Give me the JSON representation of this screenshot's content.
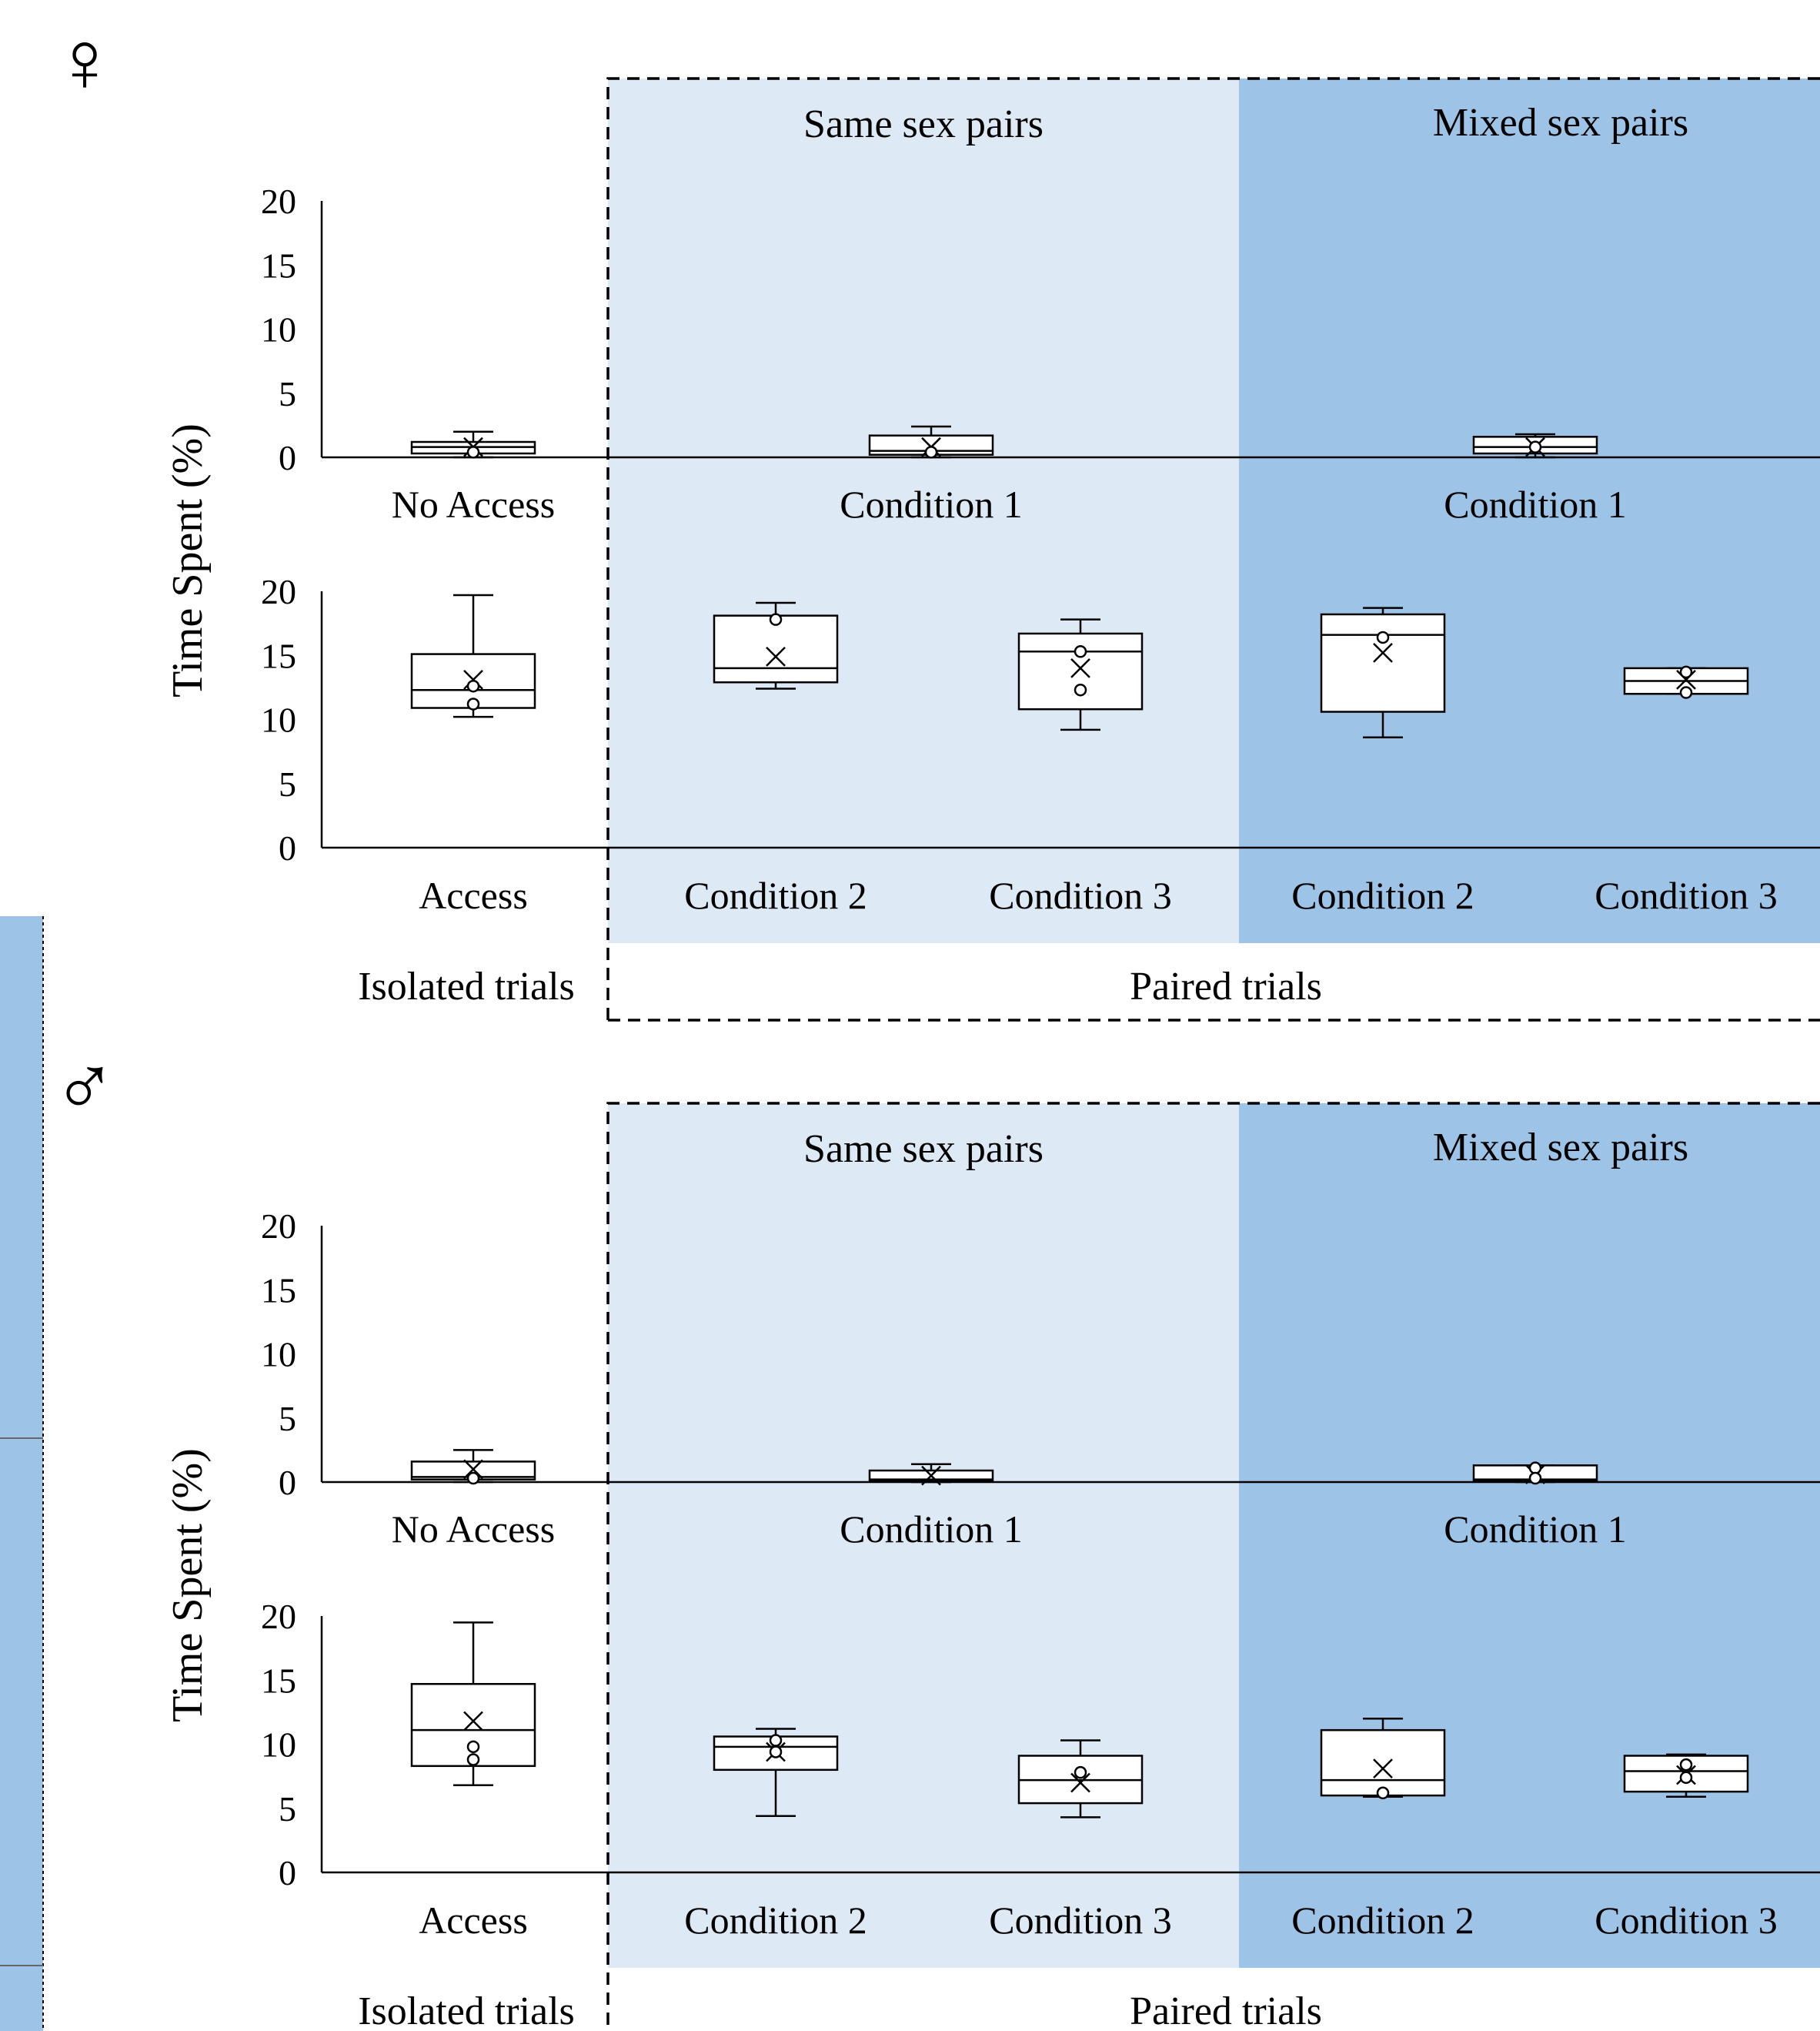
{
  "figure": {
    "ylabel": "Time Spent (%)",
    "group_same": "Same sex pairs",
    "group_mixed": "Mixed sex pairs",
    "bottom_left": "Isolated trials",
    "bottom_right": "Paired trials",
    "colors": {
      "same_bg": "#dde9f5",
      "mixed_bg": "#9dc3e6",
      "box": "#ffffff",
      "ink": "#000000"
    }
  },
  "chart_data": [
    {
      "type": "box",
      "panel": "female",
      "sex_symbol": "♀",
      "top": {
        "ylim": [
          0,
          20
        ],
        "yticks": [
          "0",
          "5",
          "10",
          "15",
          "20"
        ],
        "categories": [
          "No Access",
          "Condition 1",
          "Condition 1"
        ],
        "boxes": [
          {
            "min": 0,
            "q1": 0.3,
            "median": 0.8,
            "q3": 1.2,
            "max": 2.0,
            "mean": 0.8,
            "outliers": [
              0.4
            ]
          },
          {
            "min": 0,
            "q1": 0.2,
            "median": 0.5,
            "q3": 1.7,
            "max": 2.4,
            "mean": 0.8,
            "outliers": [
              0.4
            ]
          },
          {
            "min": 0,
            "q1": 0.3,
            "median": 0.8,
            "q3": 1.6,
            "max": 1.8,
            "mean": 0.8,
            "outliers": [
              0.8
            ]
          }
        ]
      },
      "bottom": {
        "ylim": [
          0,
          20
        ],
        "yticks": [
          "0",
          "5",
          "10",
          "15",
          "20"
        ],
        "categories": [
          "Access",
          "Condition 2",
          "Condition 3",
          "Condition 2",
          "Condition 3"
        ],
        "boxes": [
          {
            "min": 10.2,
            "q1": 10.9,
            "median": 12.3,
            "q3": 15.1,
            "max": 19.7,
            "mean": 13.1,
            "outliers": [
              12.6,
              11.2
            ]
          },
          {
            "min": 12.4,
            "q1": 12.9,
            "median": 14.0,
            "q3": 18.1,
            "max": 19.1,
            "mean": 14.9,
            "outliers": [
              17.8
            ]
          },
          {
            "min": 9.2,
            "q1": 10.8,
            "median": 15.3,
            "q3": 16.7,
            "max": 17.8,
            "mean": 14.0,
            "outliers": [
              15.3,
              12.3
            ]
          },
          {
            "min": 8.6,
            "q1": 10.6,
            "median": 16.6,
            "q3": 18.2,
            "max": 18.7,
            "mean": 15.2,
            "outliers": [
              16.4
            ]
          },
          {
            "min": 12.0,
            "q1": 12.0,
            "median": 13.0,
            "q3": 14.0,
            "max": 14.0,
            "mean": 13.1,
            "outliers": [
              13.7,
              12.1
            ]
          }
        ]
      }
    },
    {
      "type": "box",
      "panel": "male",
      "sex_symbol": "♂",
      "top": {
        "ylim": [
          0,
          20
        ],
        "yticks": [
          "0",
          "5",
          "10",
          "15",
          "20"
        ],
        "categories": [
          "No Access",
          "Condition 1",
          "Condition 1"
        ],
        "boxes": [
          {
            "min": 0,
            "q1": 0.2,
            "median": 0.4,
            "q3": 1.6,
            "max": 2.5,
            "mean": 1.0,
            "outliers": [
              0.3
            ]
          },
          {
            "min": 0,
            "q1": 0.1,
            "median": 0.2,
            "q3": 0.9,
            "max": 1.4,
            "mean": 0.5,
            "outliers": []
          },
          {
            "min": 0,
            "q1": 0.1,
            "median": 0.2,
            "q3": 1.3,
            "max": 1.3,
            "mean": 0.6,
            "outliers": [
              1.1,
              0.3
            ]
          }
        ]
      },
      "bottom": {
        "ylim": [
          0,
          20
        ],
        "yticks": [
          "0",
          "5",
          "10",
          "15",
          "20"
        ],
        "categories": [
          "Access",
          "Condition 2",
          "Condition 3",
          "Condition 2",
          "Condition 3"
        ],
        "boxes": [
          {
            "min": 6.8,
            "q1": 8.3,
            "median": 11.1,
            "q3": 14.7,
            "max": 19.5,
            "mean": 11.8,
            "outliers": [
              9.8,
              8.8
            ]
          },
          {
            "min": 4.4,
            "q1": 8.0,
            "median": 9.8,
            "q3": 10.6,
            "max": 11.2,
            "mean": 9.4,
            "outliers": [
              10.3,
              9.4
            ]
          },
          {
            "min": 4.3,
            "q1": 5.4,
            "median": 7.2,
            "q3": 9.1,
            "max": 10.3,
            "mean": 7.0,
            "outliers": [
              7.8
            ]
          },
          {
            "min": 5.9,
            "q1": 6.0,
            "median": 7.2,
            "q3": 11.1,
            "max": 12.0,
            "mean": 8.1,
            "outliers": [
              6.2
            ]
          },
          {
            "min": 5.9,
            "q1": 6.3,
            "median": 7.9,
            "q3": 9.1,
            "max": 9.2,
            "mean": 7.6,
            "outliers": [
              8.4,
              7.4
            ]
          }
        ]
      }
    }
  ]
}
